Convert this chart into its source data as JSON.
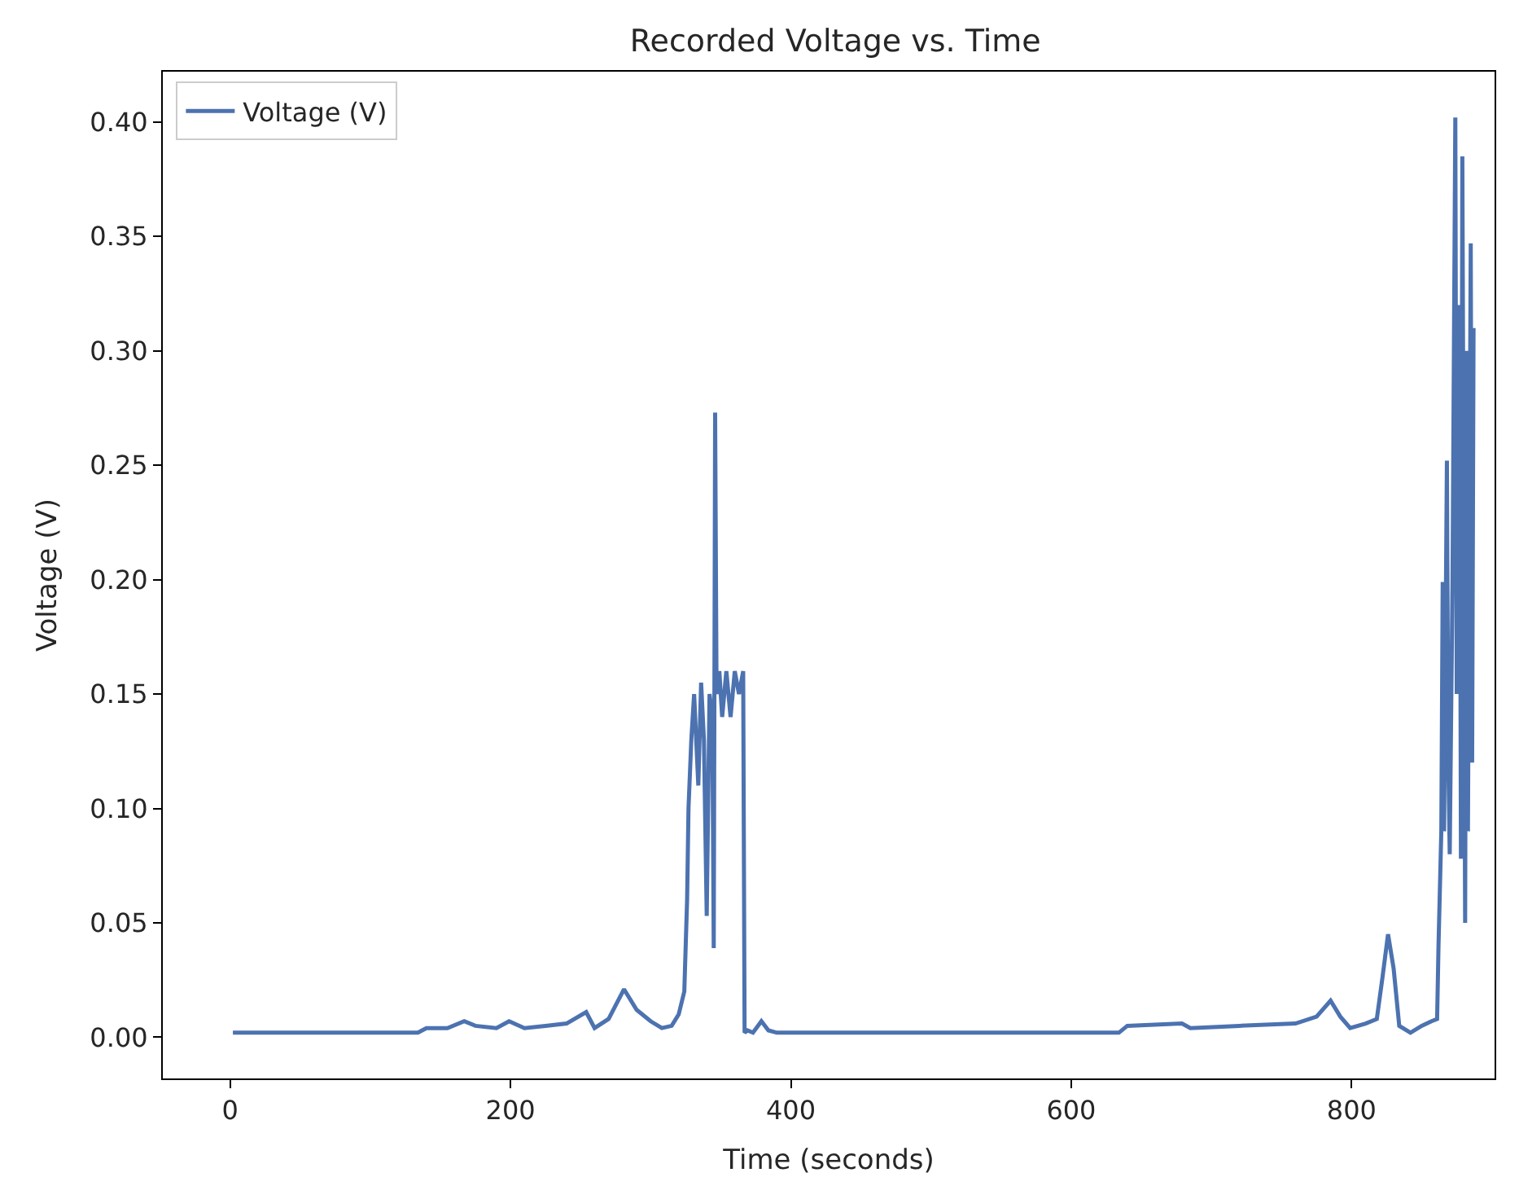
{
  "chart_data": {
    "type": "line",
    "title": "Recorded Voltage vs. Time",
    "xlabel": "Time (seconds)",
    "ylabel": "Voltage (V)",
    "xlim": [
      -48,
      902
    ],
    "ylim": [
      -0.018,
      0.422
    ],
    "xticks": [
      0,
      200,
      400,
      600,
      800
    ],
    "yticks": [
      {
        "value": 0,
        "label": "0.00"
      },
      {
        "value": 0.05,
        "label": "0.05"
      },
      {
        "value": 0.1,
        "label": "0.10"
      },
      {
        "value": 0.15,
        "label": "0.15"
      },
      {
        "value": 0.2,
        "label": "0.20"
      },
      {
        "value": 0.25,
        "label": "0.25"
      },
      {
        "value": 0.3,
        "label": "0.30"
      },
      {
        "value": 0.35,
        "label": "0.35"
      },
      {
        "value": 0.4,
        "label": "0.40"
      }
    ],
    "legend": "top left",
    "marker": "none",
    "line_style": "solid",
    "series": [
      {
        "name": "Voltage (V)",
        "color": "#4c72b0",
        "x": [
          2,
          60,
          134,
          140,
          155,
          167,
          175,
          190,
          199,
          210,
          225,
          240,
          254,
          260,
          270,
          281,
          290,
          300,
          308,
          315,
          320,
          324,
          326,
          327,
          329,
          331,
          334,
          336,
          338,
          340,
          342,
          344,
          345,
          346,
          347,
          349,
          351,
          354,
          357,
          360,
          363,
          366,
          367,
          369,
          373,
          379,
          384,
          390,
          450,
          550,
          634,
          640,
          679,
          685,
          720,
          760,
          775,
          785,
          792,
          799,
          810,
          818,
          822,
          826,
          830,
          834,
          842,
          850,
          857,
          861,
          862,
          864,
          865,
          866,
          868,
          869,
          870,
          872,
          874,
          875,
          877,
          878,
          879,
          881,
          882,
          883,
          885,
          886,
          887
        ],
        "values": [
          0.002,
          0.002,
          0.002,
          0.004,
          0.004,
          0.007,
          0.005,
          0.004,
          0.007,
          0.004,
          0.005,
          0.006,
          0.011,
          0.004,
          0.008,
          0.021,
          0.012,
          0.007,
          0.004,
          0.005,
          0.01,
          0.02,
          0.06,
          0.1,
          0.13,
          0.15,
          0.11,
          0.155,
          0.13,
          0.053,
          0.15,
          0.14,
          0.039,
          0.273,
          0.15,
          0.16,
          0.14,
          0.16,
          0.14,
          0.16,
          0.15,
          0.16,
          0.002,
          0.003,
          0.002,
          0.007,
          0.003,
          0.002,
          0.002,
          0.002,
          0.002,
          0.005,
          0.006,
          0.004,
          0.005,
          0.006,
          0.009,
          0.016,
          0.009,
          0.004,
          0.006,
          0.008,
          0.026,
          0.045,
          0.03,
          0.005,
          0.002,
          0.005,
          0.007,
          0.008,
          0.04,
          0.09,
          0.199,
          0.09,
          0.252,
          0.12,
          0.08,
          0.2,
          0.402,
          0.15,
          0.32,
          0.078,
          0.385,
          0.05,
          0.3,
          0.09,
          0.347,
          0.12,
          0.31
        ]
      }
    ]
  }
}
